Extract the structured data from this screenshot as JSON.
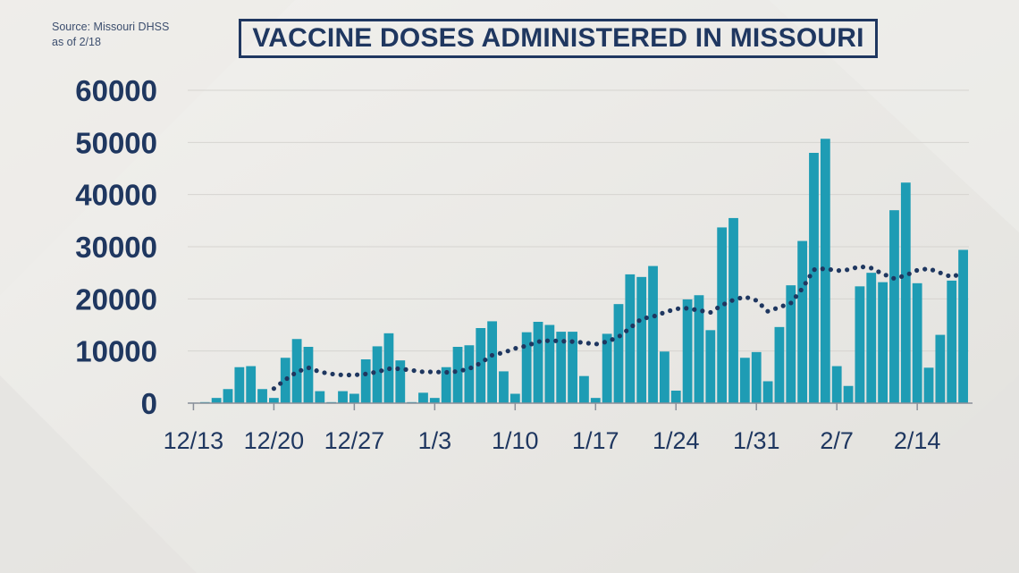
{
  "source": {
    "line1": "Source: Missouri DHSS",
    "line2": "as of 2/18"
  },
  "colors": {
    "bar": "#1e9cb4",
    "avg_dots": "#1f3760",
    "text": "#1f3760",
    "grid": "#d6d4d0"
  },
  "chart_data": {
    "type": "bar",
    "title": "VACCINE DOSES ADMINISTERED IN MISSOURI",
    "xlabel": "",
    "ylabel": "",
    "ylim": [
      0,
      60000
    ],
    "yticks": [
      "0",
      "10000",
      "20000",
      "30000",
      "40000",
      "50000",
      "60000"
    ],
    "xticks": [
      "12/13",
      "12/20",
      "12/27",
      "1/3",
      "1/10",
      "1/17",
      "1/24",
      "1/31",
      "2/7",
      "2/14"
    ],
    "grid": true,
    "legend": "none",
    "categories": [
      "12/13",
      "12/14",
      "12/15",
      "12/16",
      "12/17",
      "12/18",
      "12/19",
      "12/20",
      "12/21",
      "12/22",
      "12/23",
      "12/24",
      "12/25",
      "12/26",
      "12/27",
      "12/28",
      "12/29",
      "12/30",
      "12/31",
      "1/1",
      "1/2",
      "1/3",
      "1/4",
      "1/5",
      "1/6",
      "1/7",
      "1/8",
      "1/9",
      "1/10",
      "1/11",
      "1/12",
      "1/13",
      "1/14",
      "1/15",
      "1/16",
      "1/17",
      "1/18",
      "1/19",
      "1/20",
      "1/21",
      "1/22",
      "1/23",
      "1/24",
      "1/25",
      "1/26",
      "1/27",
      "1/28",
      "1/29",
      "1/30",
      "1/31",
      "2/1",
      "2/2",
      "2/3",
      "2/4",
      "2/5",
      "2/6",
      "2/7",
      "2/8",
      "2/9",
      "2/10",
      "2/11",
      "2/12",
      "2/13",
      "2/14",
      "2/15",
      "2/16",
      "2/17",
      "2/18"
    ],
    "series": [
      {
        "type": "bar",
        "values": [
          100,
          200,
          1000,
          2700,
          6900,
          7100,
          2700,
          1000,
          8700,
          12300,
          10800,
          2300,
          200,
          2300,
          1800,
          8400,
          10900,
          13400,
          8200,
          200,
          2000,
          1000,
          6900,
          10800,
          11100,
          14400,
          15700,
          6100,
          1800,
          13600,
          15600,
          15000,
          13700,
          13700,
          5200,
          1000,
          13300,
          19000,
          24700,
          24200,
          26300,
          9900,
          2400,
          19900,
          20700,
          14000,
          33700,
          35500,
          8700,
          9800,
          4200,
          14600,
          22600,
          31100,
          48000,
          50700,
          7100,
          3300,
          22400,
          25000,
          23200,
          37000,
          42300,
          23000,
          6800,
          13100,
          23500,
          29400
        ]
      },
      {
        "type": "line-dotted",
        "values": [
          null,
          null,
          null,
          null,
          null,
          null,
          null,
          2800,
          4500,
          6000,
          6800,
          6000,
          5600,
          5400,
          5400,
          5600,
          6000,
          6600,
          6600,
          6300,
          6000,
          6000,
          5900,
          6100,
          6600,
          7700,
          9200,
          9700,
          10500,
          11000,
          11800,
          12000,
          11900,
          11800,
          11600,
          11300,
          11800,
          12700,
          14400,
          16200,
          16600,
          17400,
          18100,
          18200,
          17800,
          17400,
          18800,
          19800,
          20400,
          19700,
          17600,
          18400,
          19200,
          22000,
          25600,
          25800,
          25400,
          25600,
          26200,
          25900,
          24800,
          23900,
          24500,
          25500,
          25800,
          25000,
          24200,
          25000
        ]
      }
    ]
  }
}
